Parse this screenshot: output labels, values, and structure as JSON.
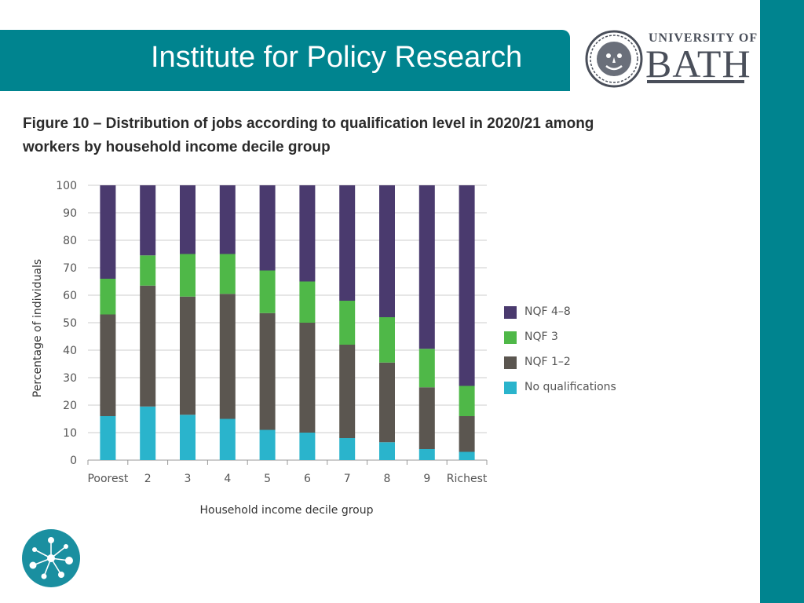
{
  "header": {
    "title": "Institute for Policy Research"
  },
  "logo": {
    "line1": "UNIVERSITY OF",
    "line2": "BATH"
  },
  "figure": {
    "title": "Figure 10 – Distribution of jobs according to qualification level in 2020/21 among workers by household income decile group"
  },
  "colors": {
    "teal": "#00848f",
    "nqf48": "#4a3a6e",
    "nqf3": "#4fb848",
    "nqf12": "#5b5650",
    "noqual": "#2ab4cc"
  },
  "chart_data": {
    "type": "bar",
    "stacked": true,
    "categories": [
      "Poorest",
      "2",
      "3",
      "4",
      "5",
      "6",
      "7",
      "8",
      "9",
      "Richest"
    ],
    "series": [
      {
        "name": "No qualifications",
        "color": "#2ab4cc",
        "values": [
          16,
          19.5,
          16.5,
          15,
          11,
          10,
          8,
          6.5,
          4,
          3
        ]
      },
      {
        "name": "NQF 1–2",
        "color": "#5b5650",
        "values": [
          37,
          44,
          43,
          45.5,
          42.5,
          40,
          34,
          29,
          22.5,
          13
        ]
      },
      {
        "name": "NQF 3",
        "color": "#4fb848",
        "values": [
          13,
          11,
          15.5,
          14.5,
          15.5,
          15,
          16,
          16.5,
          14,
          11
        ]
      },
      {
        "name": "NQF 4–8",
        "color": "#4a3a6e",
        "values": [
          34,
          25.5,
          25,
          25,
          31,
          35,
          42,
          48,
          59.5,
          73
        ]
      }
    ],
    "legend_order": [
      "NQF 4–8",
      "NQF 3",
      "NQF 1–2",
      "No qualifications"
    ],
    "xlabel": "Household income decile group",
    "ylabel": "Percentage of individuals",
    "ylim": [
      0,
      100
    ],
    "yticks": [
      0,
      10,
      20,
      30,
      40,
      50,
      60,
      70,
      80,
      90,
      100
    ],
    "grid": true,
    "legend_position": "right"
  }
}
